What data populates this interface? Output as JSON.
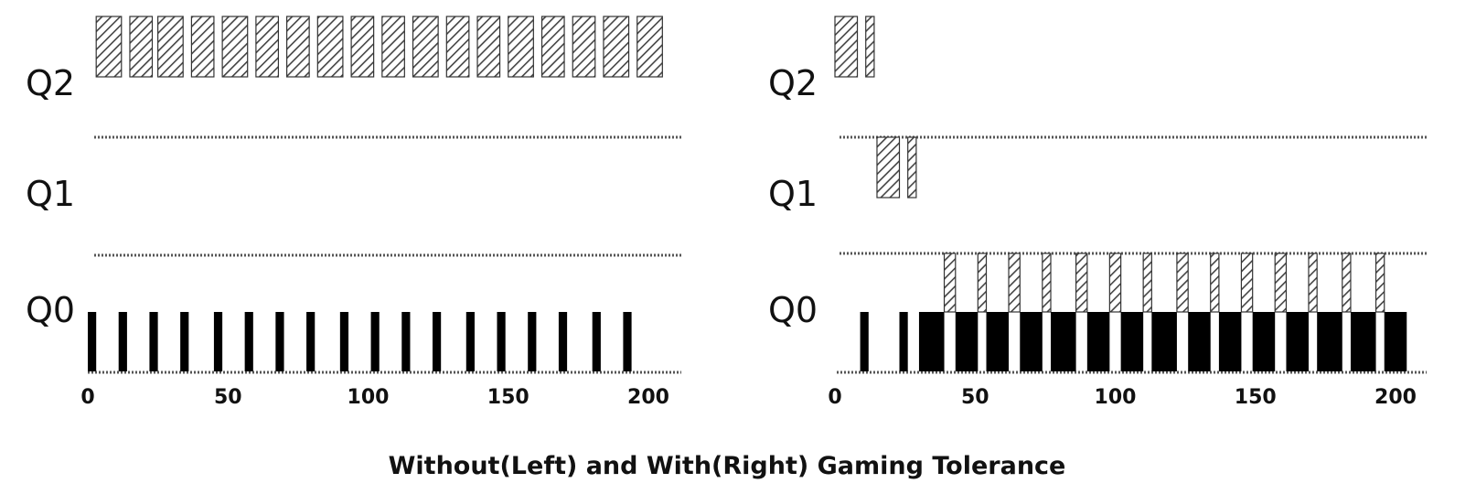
{
  "caption": "Without(Left) and With(Right) Gaming Tolerance",
  "colors": {
    "cpu": "#000000",
    "hatch": "#444444",
    "hatch_bg": "#ffffff",
    "outline": "#333333"
  },
  "panels": [
    {
      "id": "left",
      "queue_labels": [
        "Q2",
        "Q1",
        "Q0"
      ],
      "x_ticks": [
        0,
        50,
        100,
        150,
        200
      ],
      "x_range": [
        0,
        200
      ],
      "jobs": [
        {
          "queue": 2,
          "pattern": "hatch",
          "start": 3,
          "end": 12
        },
        {
          "queue": 2,
          "pattern": "hatch",
          "start": 15,
          "end": 23
        },
        {
          "queue": 2,
          "pattern": "hatch",
          "start": 25,
          "end": 34
        },
        {
          "queue": 2,
          "pattern": "hatch",
          "start": 37,
          "end": 45
        },
        {
          "queue": 2,
          "pattern": "hatch",
          "start": 48,
          "end": 57
        },
        {
          "queue": 2,
          "pattern": "hatch",
          "start": 60,
          "end": 68
        },
        {
          "queue": 2,
          "pattern": "hatch",
          "start": 71,
          "end": 79
        },
        {
          "queue": 2,
          "pattern": "hatch",
          "start": 82,
          "end": 91
        },
        {
          "queue": 2,
          "pattern": "hatch",
          "start": 94,
          "end": 102
        },
        {
          "queue": 2,
          "pattern": "hatch",
          "start": 105,
          "end": 113
        },
        {
          "queue": 2,
          "pattern": "hatch",
          "start": 116,
          "end": 125
        },
        {
          "queue": 2,
          "pattern": "hatch",
          "start": 128,
          "end": 136
        },
        {
          "queue": 2,
          "pattern": "hatch",
          "start": 139,
          "end": 147
        },
        {
          "queue": 2,
          "pattern": "hatch",
          "start": 150,
          "end": 159
        },
        {
          "queue": 2,
          "pattern": "hatch",
          "start": 162,
          "end": 170
        },
        {
          "queue": 2,
          "pattern": "hatch",
          "start": 173,
          "end": 181
        },
        {
          "queue": 2,
          "pattern": "hatch",
          "start": 184,
          "end": 193
        },
        {
          "queue": 2,
          "pattern": "hatch",
          "start": 196,
          "end": 205
        },
        {
          "queue": 0,
          "pattern": "solid",
          "start": 0,
          "end": 3
        },
        {
          "queue": 0,
          "pattern": "solid",
          "start": 11,
          "end": 14
        },
        {
          "queue": 0,
          "pattern": "solid",
          "start": 22,
          "end": 25
        },
        {
          "queue": 0,
          "pattern": "solid",
          "start": 33,
          "end": 36
        },
        {
          "queue": 0,
          "pattern": "solid",
          "start": 45,
          "end": 48
        },
        {
          "queue": 0,
          "pattern": "solid",
          "start": 56,
          "end": 59
        },
        {
          "queue": 0,
          "pattern": "solid",
          "start": 67,
          "end": 70
        },
        {
          "queue": 0,
          "pattern": "solid",
          "start": 78,
          "end": 81
        },
        {
          "queue": 0,
          "pattern": "solid",
          "start": 90,
          "end": 93
        },
        {
          "queue": 0,
          "pattern": "solid",
          "start": 101,
          "end": 104
        },
        {
          "queue": 0,
          "pattern": "solid",
          "start": 112,
          "end": 115
        },
        {
          "queue": 0,
          "pattern": "solid",
          "start": 123,
          "end": 126
        },
        {
          "queue": 0,
          "pattern": "solid",
          "start": 135,
          "end": 138
        },
        {
          "queue": 0,
          "pattern": "solid",
          "start": 146,
          "end": 149
        },
        {
          "queue": 0,
          "pattern": "solid",
          "start": 157,
          "end": 160
        },
        {
          "queue": 0,
          "pattern": "solid",
          "start": 168,
          "end": 171
        },
        {
          "queue": 0,
          "pattern": "solid",
          "start": 180,
          "end": 183
        },
        {
          "queue": 0,
          "pattern": "solid",
          "start": 191,
          "end": 194
        }
      ]
    },
    {
      "id": "right",
      "queue_labels": [
        "Q2",
        "Q1",
        "Q0"
      ],
      "x_ticks": [
        0,
        50,
        100,
        150,
        200
      ],
      "x_range": [
        0,
        200
      ],
      "jobs": [
        {
          "queue": 2,
          "pattern": "hatch",
          "start": 0,
          "end": 8
        },
        {
          "queue": 2,
          "pattern": "hatch",
          "start": 11,
          "end": 14
        },
        {
          "queue": 1,
          "pattern": "hatch",
          "start": 15,
          "end": 23
        },
        {
          "queue": 1,
          "pattern": "hatch",
          "start": 26,
          "end": 29
        },
        {
          "queue": 0,
          "pattern": "solid",
          "start": 9,
          "end": 12
        },
        {
          "queue": 0,
          "pattern": "solid",
          "start": 23,
          "end": 26
        },
        {
          "queue": 0,
          "pattern": "solid",
          "start": 30,
          "end": 39
        },
        {
          "queue": 0,
          "pattern": "hatch",
          "start": 39,
          "end": 43
        },
        {
          "queue": 0,
          "pattern": "solid",
          "start": 43,
          "end": 51
        },
        {
          "queue": 0,
          "pattern": "hatch",
          "start": 51,
          "end": 54
        },
        {
          "queue": 0,
          "pattern": "solid",
          "start": 54,
          "end": 62
        },
        {
          "queue": 0,
          "pattern": "hatch",
          "start": 62,
          "end": 66
        },
        {
          "queue": 0,
          "pattern": "solid",
          "start": 66,
          "end": 74
        },
        {
          "queue": 0,
          "pattern": "hatch",
          "start": 74,
          "end": 77
        },
        {
          "queue": 0,
          "pattern": "solid",
          "start": 77,
          "end": 86
        },
        {
          "queue": 0,
          "pattern": "hatch",
          "start": 86,
          "end": 90
        },
        {
          "queue": 0,
          "pattern": "solid",
          "start": 90,
          "end": 98
        },
        {
          "queue": 0,
          "pattern": "hatch",
          "start": 98,
          "end": 102
        },
        {
          "queue": 0,
          "pattern": "solid",
          "start": 102,
          "end": 110
        },
        {
          "queue": 0,
          "pattern": "hatch",
          "start": 110,
          "end": 113
        },
        {
          "queue": 0,
          "pattern": "solid",
          "start": 113,
          "end": 122
        },
        {
          "queue": 0,
          "pattern": "hatch",
          "start": 122,
          "end": 126
        },
        {
          "queue": 0,
          "pattern": "solid",
          "start": 126,
          "end": 134
        },
        {
          "queue": 0,
          "pattern": "hatch",
          "start": 134,
          "end": 137
        },
        {
          "queue": 0,
          "pattern": "solid",
          "start": 137,
          "end": 145
        },
        {
          "queue": 0,
          "pattern": "hatch",
          "start": 145,
          "end": 149
        },
        {
          "queue": 0,
          "pattern": "solid",
          "start": 149,
          "end": 157
        },
        {
          "queue": 0,
          "pattern": "hatch",
          "start": 157,
          "end": 161
        },
        {
          "queue": 0,
          "pattern": "solid",
          "start": 161,
          "end": 169
        },
        {
          "queue": 0,
          "pattern": "hatch",
          "start": 169,
          "end": 172
        },
        {
          "queue": 0,
          "pattern": "solid",
          "start": 172,
          "end": 181
        },
        {
          "queue": 0,
          "pattern": "hatch",
          "start": 181,
          "end": 184
        },
        {
          "queue": 0,
          "pattern": "solid",
          "start": 184,
          "end": 193
        },
        {
          "queue": 0,
          "pattern": "hatch",
          "start": 193,
          "end": 196
        },
        {
          "queue": 0,
          "pattern": "solid",
          "start": 196,
          "end": 204
        }
      ]
    }
  ]
}
